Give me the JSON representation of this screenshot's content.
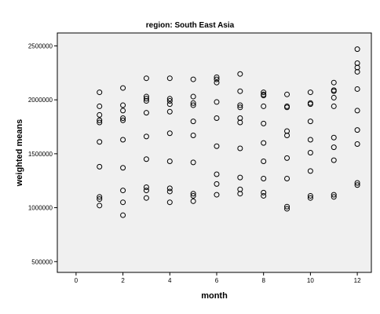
{
  "chart_data": {
    "type": "scatter",
    "title": "region: South East Asia",
    "xlabel": "month",
    "ylabel": "weighted means",
    "xlim": [
      -0.8,
      12.6
    ],
    "ylim": [
      400000,
      2620000
    ],
    "x_ticks": [
      0,
      2,
      4,
      6,
      8,
      10,
      12
    ],
    "y_ticks": [
      500000,
      1000000,
      1500000,
      2000000,
      2500000
    ],
    "y_tick_labels": [
      "500000",
      "1000000",
      "1500000",
      "2000000",
      "2500000"
    ],
    "grid": false,
    "legend": "none",
    "plot_background": "#f0f0f0",
    "marker": "hollow-circle",
    "series": [
      {
        "points": [
          [
            1,
            2070000
          ],
          [
            1,
            1940000
          ],
          [
            1,
            1860000
          ],
          [
            1,
            1810000
          ],
          [
            1,
            1790000
          ],
          [
            1,
            1610000
          ],
          [
            1,
            1380000
          ],
          [
            1,
            1100000
          ],
          [
            1,
            1080000
          ],
          [
            1,
            1020000
          ],
          [
            2,
            2110000
          ],
          [
            2,
            1950000
          ],
          [
            2,
            1900000
          ],
          [
            2,
            1830000
          ],
          [
            2,
            1810000
          ],
          [
            2,
            1630000
          ],
          [
            2,
            1370000
          ],
          [
            2,
            1160000
          ],
          [
            2,
            1050000
          ],
          [
            2,
            930000
          ],
          [
            3,
            2200000
          ],
          [
            3,
            2030000
          ],
          [
            3,
            2010000
          ],
          [
            3,
            1990000
          ],
          [
            3,
            1880000
          ],
          [
            3,
            1660000
          ],
          [
            3,
            1450000
          ],
          [
            3,
            1190000
          ],
          [
            3,
            1160000
          ],
          [
            3,
            1090000
          ],
          [
            4,
            2200000
          ],
          [
            4,
            2010000
          ],
          [
            4,
            1990000
          ],
          [
            4,
            1960000
          ],
          [
            4,
            1890000
          ],
          [
            4,
            1690000
          ],
          [
            4,
            1430000
          ],
          [
            4,
            1180000
          ],
          [
            4,
            1150000
          ],
          [
            4,
            1050000
          ],
          [
            5,
            2190000
          ],
          [
            5,
            2030000
          ],
          [
            5,
            1970000
          ],
          [
            5,
            1950000
          ],
          [
            5,
            1800000
          ],
          [
            5,
            1670000
          ],
          [
            5,
            1420000
          ],
          [
            5,
            1130000
          ],
          [
            5,
            1110000
          ],
          [
            5,
            1060000
          ],
          [
            6,
            2210000
          ],
          [
            6,
            2190000
          ],
          [
            6,
            2160000
          ],
          [
            6,
            1980000
          ],
          [
            6,
            1830000
          ],
          [
            6,
            1570000
          ],
          [
            6,
            1310000
          ],
          [
            6,
            1220000
          ],
          [
            6,
            1120000
          ],
          [
            7,
            2240000
          ],
          [
            7,
            2080000
          ],
          [
            7,
            1950000
          ],
          [
            7,
            1930000
          ],
          [
            7,
            1830000
          ],
          [
            7,
            1790000
          ],
          [
            7,
            1550000
          ],
          [
            7,
            1280000
          ],
          [
            7,
            1170000
          ],
          [
            7,
            1130000
          ],
          [
            8,
            2070000
          ],
          [
            8,
            2050000
          ],
          [
            8,
            2040000
          ],
          [
            8,
            1940000
          ],
          [
            8,
            1780000
          ],
          [
            8,
            1600000
          ],
          [
            8,
            1430000
          ],
          [
            8,
            1270000
          ],
          [
            8,
            1140000
          ],
          [
            8,
            1110000
          ],
          [
            9,
            2050000
          ],
          [
            9,
            1940000
          ],
          [
            9,
            1930000
          ],
          [
            9,
            1710000
          ],
          [
            9,
            1670000
          ],
          [
            9,
            1460000
          ],
          [
            9,
            1270000
          ],
          [
            9,
            1010000
          ],
          [
            9,
            990000
          ],
          [
            10,
            2070000
          ],
          [
            10,
            1970000
          ],
          [
            10,
            1960000
          ],
          [
            10,
            1800000
          ],
          [
            10,
            1630000
          ],
          [
            10,
            1510000
          ],
          [
            10,
            1340000
          ],
          [
            10,
            1110000
          ],
          [
            10,
            1090000
          ],
          [
            11,
            2160000
          ],
          [
            11,
            2090000
          ],
          [
            11,
            2080000
          ],
          [
            11,
            2020000
          ],
          [
            11,
            1940000
          ],
          [
            11,
            1650000
          ],
          [
            11,
            1560000
          ],
          [
            11,
            1440000
          ],
          [
            11,
            1120000
          ],
          [
            11,
            1100000
          ],
          [
            12,
            2470000
          ],
          [
            12,
            2340000
          ],
          [
            12,
            2300000
          ],
          [
            12,
            2260000
          ],
          [
            12,
            2100000
          ],
          [
            12,
            1900000
          ],
          [
            12,
            1720000
          ],
          [
            12,
            1590000
          ],
          [
            12,
            1230000
          ],
          [
            12,
            1210000
          ]
        ]
      }
    ]
  }
}
